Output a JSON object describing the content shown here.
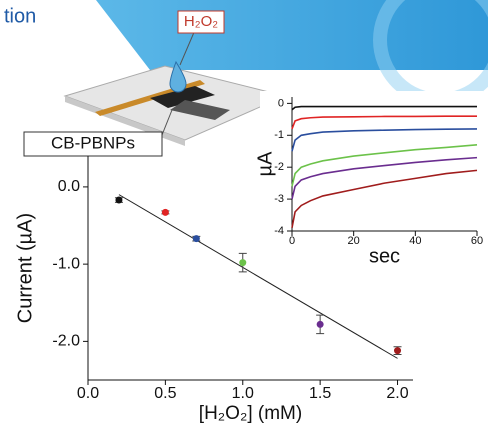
{
  "header": {
    "text": "tion"
  },
  "device": {
    "reagent_label": "H₂O₂",
    "electrode_label": "CB-PBNPs"
  },
  "chart_data": [
    {
      "type": "scatter",
      "x_label": "[H₂O₂] (mM)",
      "y_label": "Current (µA)",
      "x": [
        0.2,
        0.5,
        0.7,
        1.0,
        1.5,
        2.0
      ],
      "values": [
        -0.17,
        -0.33,
        -0.67,
        -0.98,
        -1.78,
        -2.12
      ],
      "errors": [
        0.03,
        0.02,
        0.03,
        0.12,
        0.12,
        0.05
      ],
      "point_colors": [
        "#111111",
        "#e02424",
        "#2a4e9e",
        "#6cc24a",
        "#6a2d8f",
        "#a01c1c"
      ],
      "fit_line": {
        "x": [
          0.2,
          2.0
        ],
        "values": [
          -0.1,
          -2.22
        ],
        "color": "#222222"
      },
      "xlim": [
        0,
        2.1
      ],
      "ylim": [
        -2.5,
        0.4
      ],
      "xticks": [
        {
          "value": 0,
          "label": "0.0"
        },
        {
          "value": 0.5,
          "label": "0.5"
        },
        {
          "value": 1,
          "label": "1.0"
        },
        {
          "value": 1.5,
          "label": "1.5"
        },
        {
          "value": 2,
          "label": "2.0"
        }
      ],
      "yticks": [
        {
          "value": 0,
          "label": "0.0"
        },
        {
          "value": -1,
          "label": "-1.0"
        },
        {
          "value": -2,
          "label": "-2.0"
        }
      ]
    },
    {
      "type": "line",
      "x_label": "sec",
      "y_label": "µA",
      "x": [
        0,
        1,
        3,
        6,
        10,
        20,
        30,
        40,
        50,
        60
      ],
      "series": [
        {
          "color": "#111111",
          "values": [
            -0.2,
            -0.12,
            -0.1,
            -0.1,
            -0.1,
            -0.1,
            -0.1,
            -0.1,
            -0.1,
            -0.1
          ]
        },
        {
          "color": "#e02424",
          "values": [
            -0.8,
            -0.55,
            -0.48,
            -0.45,
            -0.43,
            -0.42,
            -0.41,
            -0.41,
            -0.4,
            -0.4
          ]
        },
        {
          "color": "#2a4e9e",
          "values": [
            -1.5,
            -1.15,
            -1.0,
            -0.95,
            -0.9,
            -0.86,
            -0.84,
            -0.82,
            -0.81,
            -0.8
          ]
        },
        {
          "color": "#6cc24a",
          "values": [
            -2.6,
            -2.2,
            -2.0,
            -1.9,
            -1.8,
            -1.65,
            -1.55,
            -1.45,
            -1.38,
            -1.3
          ]
        },
        {
          "color": "#6a2d8f",
          "values": [
            -3.0,
            -2.6,
            -2.4,
            -2.3,
            -2.2,
            -2.05,
            -1.95,
            -1.85,
            -1.77,
            -1.7
          ]
        },
        {
          "color": "#a01c1c",
          "values": [
            -3.9,
            -3.4,
            -3.2,
            -3.05,
            -2.9,
            -2.7,
            -2.5,
            -2.35,
            -2.2,
            -2.1
          ]
        }
      ],
      "xlim": [
        0,
        60
      ],
      "ylim": [
        -4,
        0.2
      ],
      "xticks": [
        0,
        20,
        40,
        60
      ],
      "yticks": [
        0,
        -1,
        -2,
        -3,
        -4
      ]
    }
  ]
}
